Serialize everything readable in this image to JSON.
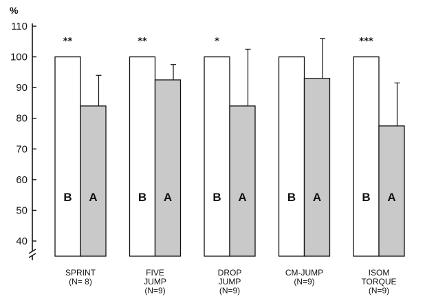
{
  "chart_data": {
    "type": "bar",
    "unit": "%",
    "ylim": [
      35,
      110
    ],
    "yticks": [
      40,
      50,
      60,
      70,
      80,
      90,
      100,
      110
    ],
    "axis_break": true,
    "grid": false,
    "legend": "none",
    "colors": {
      "before": "#ffffff",
      "after": "#c9c9c9",
      "line": "#111111"
    },
    "categories": [
      {
        "lines": [
          "SPRINT",
          "(N= 8)"
        ],
        "significance": "**"
      },
      {
        "lines": [
          "FIVE",
          "JUMP",
          "(N=9)"
        ],
        "significance": "**"
      },
      {
        "lines": [
          "DROP",
          "JUMP",
          "(N=9)"
        ],
        "significance": "*"
      },
      {
        "lines": [
          "CM-JUMP",
          "(N=9)"
        ],
        "significance": ""
      },
      {
        "lines": [
          "ISOM",
          "TORQUE",
          "(N=9)"
        ],
        "significance": "***"
      }
    ],
    "series": [
      {
        "letter": "B",
        "values": [
          100,
          100,
          100,
          100,
          100
        ],
        "error": [
          0,
          0,
          0,
          0,
          0
        ]
      },
      {
        "letter": "A",
        "values": [
          84,
          92.5,
          84,
          93,
          77.5
        ],
        "error": [
          10,
          5,
          18.5,
          13,
          14
        ]
      }
    ]
  }
}
